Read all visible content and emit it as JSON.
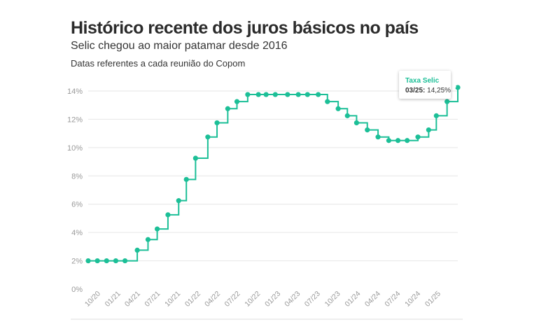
{
  "title": "Histórico recente dos juros básicos no país",
  "subtitle": "Selic chegou ao maior patamar desde 2016",
  "note": "Datas referentes a cada reunião do Copom",
  "colors": {
    "line": "#1cbf97",
    "grid": "#e6e6e6",
    "text": "#333333",
    "tick": "#999999"
  },
  "tooltip": {
    "series": "Taxa Selic",
    "date": "03/25",
    "value": "14,25%"
  },
  "chart_data": {
    "type": "line",
    "step": true,
    "y_tick_labels": [
      "0%",
      "2%",
      "4%",
      "6%",
      "8%",
      "10%",
      "12%",
      "14%"
    ],
    "x_tick_labels": [
      "10/20",
      "01/21",
      "04/21",
      "07/21",
      "10/21",
      "01/22",
      "04/22",
      "07/22",
      "10/22",
      "01/23",
      "04/23",
      "07/23",
      "10/23",
      "01/24",
      "04/24",
      "07/24",
      "10/24",
      "01/25"
    ],
    "ylim": [
      0,
      14.25
    ],
    "grid": true,
    "legend": "none",
    "x": [
      "2020-08-05",
      "2020-09-16",
      "2020-10-28",
      "2020-12-09",
      "2021-01-20",
      "2021-03-17",
      "2021-05-05",
      "2021-06-16",
      "2021-08-04",
      "2021-09-22",
      "2021-10-27",
      "2021-12-08",
      "2022-02-02",
      "2022-03-16",
      "2022-05-04",
      "2022-06-15",
      "2022-08-03",
      "2022-09-21",
      "2022-10-26",
      "2022-12-07",
      "2023-02-01",
      "2023-03-22",
      "2023-05-03",
      "2023-06-21",
      "2023-08-02",
      "2023-09-20",
      "2023-11-01",
      "2023-12-13",
      "2024-01-31",
      "2024-03-20",
      "2024-05-08",
      "2024-06-19",
      "2024-07-31",
      "2024-09-18",
      "2024-11-06",
      "2024-12-11",
      "2025-01-29",
      "2025-03-19"
    ],
    "values": [
      2.0,
      2.0,
      2.0,
      2.0,
      2.0,
      2.75,
      3.5,
      4.25,
      5.25,
      6.25,
      7.75,
      9.25,
      10.75,
      11.75,
      12.75,
      13.25,
      13.75,
      13.75,
      13.75,
      13.75,
      13.75,
      13.75,
      13.75,
      13.75,
      13.25,
      12.75,
      12.25,
      11.75,
      11.25,
      10.75,
      10.5,
      10.5,
      10.5,
      10.75,
      11.25,
      12.25,
      13.25,
      14.25
    ]
  }
}
